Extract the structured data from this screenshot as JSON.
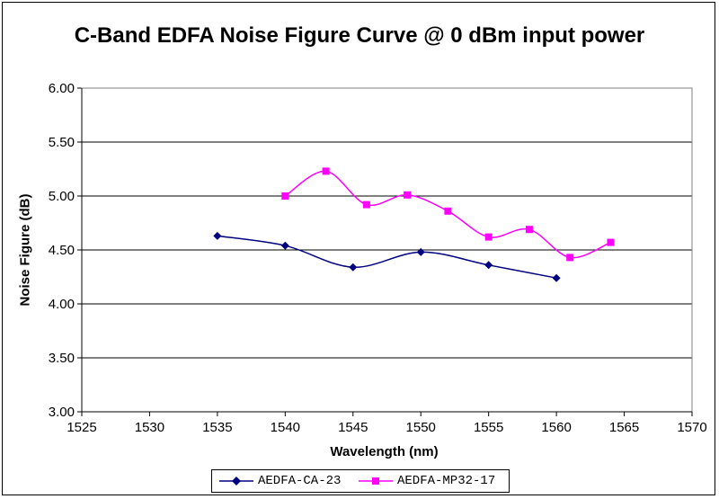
{
  "chart_data": {
    "type": "line",
    "title": "C-Band EDFA Noise Figure Curve @ 0 dBm input power",
    "xlabel": "Wavelength (nm)",
    "ylabel": "Noise Figure (dB)",
    "xlim": [
      1525,
      1570
    ],
    "ylim": [
      3.0,
      6.0
    ],
    "xticks": [
      "1525",
      "1530",
      "1535",
      "1540",
      "1545",
      "1550",
      "1555",
      "1560",
      "1565",
      "1570"
    ],
    "yticks": [
      "3.00",
      "3.50",
      "4.00",
      "4.50",
      "5.00",
      "5.50",
      "6.00"
    ],
    "grid": "horizontal",
    "smooth": true,
    "legend_position": "bottom",
    "series": [
      {
        "name": "AEDFA-CA-23",
        "color": "#000080",
        "marker": "diamond",
        "x": [
          1535,
          1540,
          1545,
          1550,
          1555,
          1560
        ],
        "y": [
          4.63,
          4.54,
          4.34,
          4.48,
          4.36,
          4.24
        ]
      },
      {
        "name": "AEDFA-MP32-17",
        "color": "#ff00ff",
        "marker": "square",
        "x": [
          1540,
          1543,
          1546,
          1549,
          1552,
          1555,
          1558,
          1561,
          1564
        ],
        "y": [
          5.0,
          5.23,
          4.92,
          5.01,
          4.86,
          4.62,
          4.69,
          4.43,
          4.57
        ]
      }
    ]
  }
}
